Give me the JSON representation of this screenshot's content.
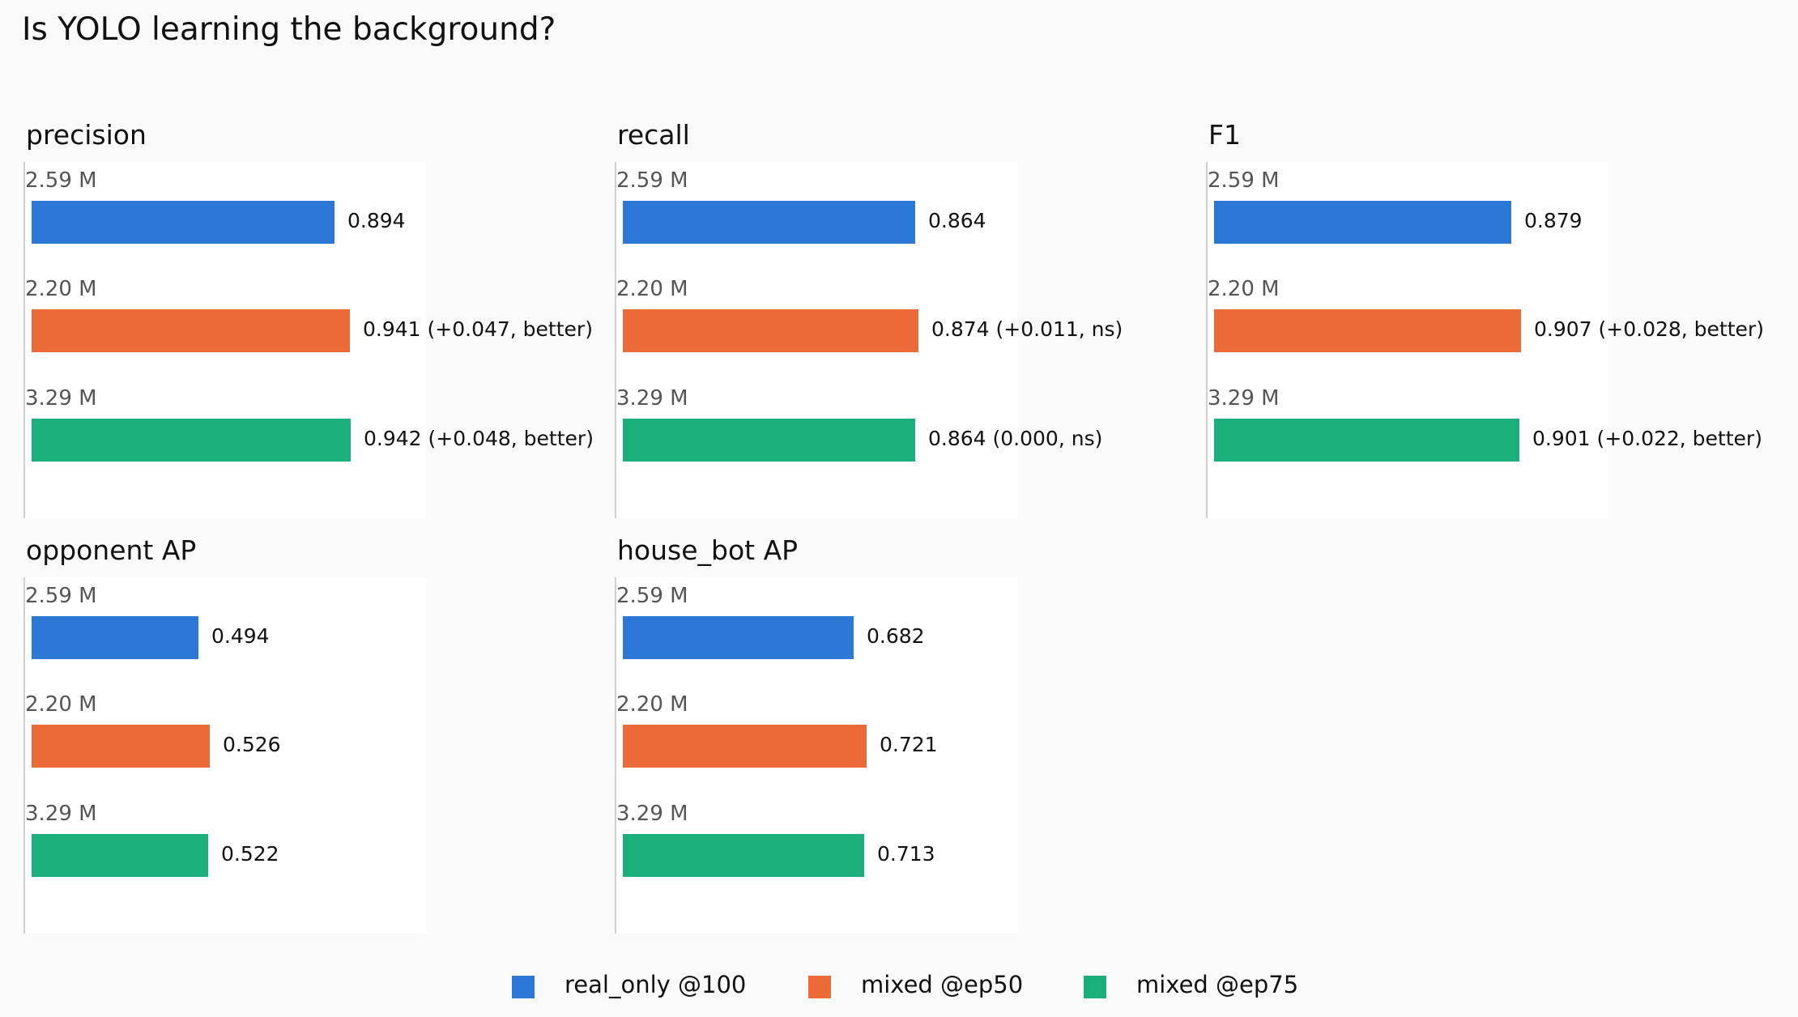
{
  "title": "Is YOLO learning the background?",
  "colors": {
    "real_only": "#2b78d6",
    "mixed_ep50": "#eb6a37",
    "mixed_ep75": "#1baf7b"
  },
  "legend": [
    {
      "label": "real_only @100",
      "color": "#2b78d6"
    },
    {
      "label": "mixed @ep50",
      "color": "#eb6a37"
    },
    {
      "label": "mixed @ep75",
      "color": "#1baf7b"
    }
  ],
  "chart_data": [
    {
      "type": "bar",
      "title": "precision",
      "orientation": "horizontal",
      "categories": [
        "2.59 M",
        "2.20 M",
        "3.29 M"
      ],
      "values": [
        0.894,
        0.941,
        0.942
      ],
      "value_labels": [
        "0.894",
        "0.941 (+0.047, better)",
        "0.942 (+0.048, better)"
      ],
      "xlim": [
        0,
        1.45
      ]
    },
    {
      "type": "bar",
      "title": "recall",
      "orientation": "horizontal",
      "categories": [
        "2.59 M",
        "2.20 M",
        "3.29 M"
      ],
      "values": [
        0.864,
        0.874,
        0.864
      ],
      "value_labels": [
        "0.864",
        "0.874 (+0.011, ns)",
        "0.864 (0.000, ns)"
      ],
      "xlim": [
        0,
        1.45
      ]
    },
    {
      "type": "bar",
      "title": "F1",
      "orientation": "horizontal",
      "categories": [
        "2.59 M",
        "2.20 M",
        "3.29 M"
      ],
      "values": [
        0.879,
        0.907,
        0.901
      ],
      "value_labels": [
        "0.879",
        "0.907 (+0.028, better)",
        "0.901 (+0.022, better)"
      ],
      "xlim": [
        0,
        1.45
      ]
    },
    {
      "type": "bar",
      "title": "opponent AP",
      "orientation": "horizontal",
      "categories": [
        "2.59 M",
        "2.20 M",
        "3.29 M"
      ],
      "values": [
        0.494,
        0.526,
        0.522
      ],
      "value_labels": [
        "0.494",
        "0.526",
        "0.522"
      ],
      "xlim": [
        0,
        0.8
      ]
    },
    {
      "type": "bar",
      "title": "house_bot AP",
      "orientation": "horizontal",
      "categories": [
        "2.59 M",
        "2.20 M",
        "3.29 M"
      ],
      "values": [
        0.682,
        0.721,
        0.713
      ],
      "value_labels": [
        "0.682",
        "0.721",
        "0.713"
      ],
      "xlim": [
        0,
        1.1
      ]
    }
  ]
}
